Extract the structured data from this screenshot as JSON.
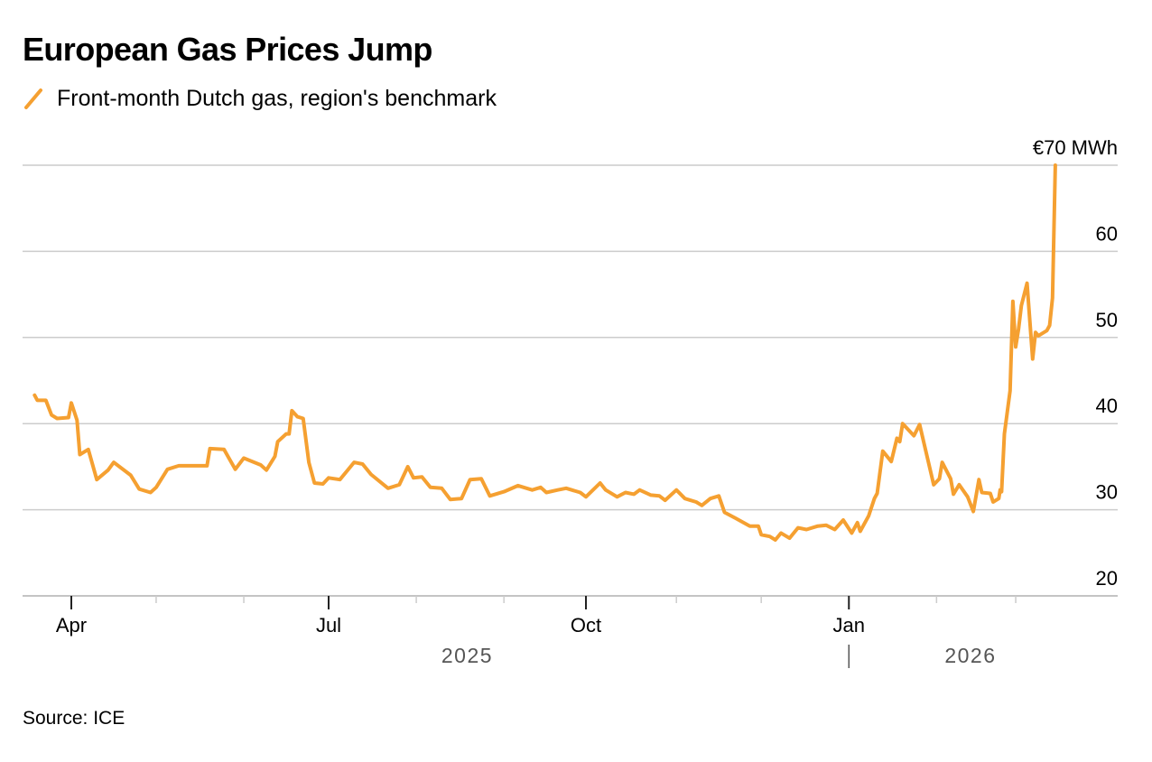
{
  "chart_data": {
    "type": "line",
    "title": "European Gas Prices Jump",
    "legend": [
      {
        "label": "Front-month Dutch gas, region's benchmark",
        "color": "#f5a031",
        "icon": "slash-line-icon"
      }
    ],
    "legend_placement": "top-left",
    "source": "Source: ICE",
    "unit_label": "€70 MWh",
    "ylabel": "",
    "xlabel": "",
    "ylim": [
      20,
      70
    ],
    "y_ticks": [
      {
        "value": 70,
        "label": "€70 MWh"
      },
      {
        "value": 60,
        "label": "60"
      },
      {
        "value": 50,
        "label": "50"
      },
      {
        "value": 40,
        "label": "40"
      },
      {
        "value": 30,
        "label": "30"
      },
      {
        "value": 20,
        "label": "20"
      }
    ],
    "y_axis_side": "right",
    "grid": true,
    "x_axis": {
      "unit": "days since 2025-04-01",
      "range": [
        -17,
        368
      ],
      "major_ticks": [
        {
          "day": 0,
          "label": "Apr"
        },
        {
          "day": 91,
          "label": "Jul"
        },
        {
          "day": 182,
          "label": "Oct"
        },
        {
          "day": 275,
          "label": "Jan"
        }
      ],
      "minor_ticks": [
        30,
        61,
        122,
        153,
        214,
        244,
        306,
        334
      ],
      "year_labels": [
        {
          "day": 140,
          "label": "2025"
        },
        {
          "day": 318,
          "label": "2026"
        }
      ],
      "year_divider_day": 275
    },
    "series": [
      {
        "name": "Front-month Dutch gas, region's benchmark",
        "color": "#f5a031",
        "x": [
          -13,
          -12,
          -9,
          -7,
          -5,
          -1,
          0,
          2,
          3,
          6,
          9,
          13,
          15,
          21,
          24,
          28,
          30,
          34,
          38,
          48,
          49,
          54,
          58,
          61,
          67,
          69,
          72,
          73,
          76,
          77,
          78,
          80,
          82,
          84,
          86,
          89,
          91,
          95,
          100,
          103,
          106,
          112,
          116,
          119,
          121,
          124,
          127,
          131,
          134,
          138,
          141,
          145,
          148,
          153,
          158,
          163,
          166,
          168,
          172,
          175,
          180,
          182,
          187,
          189,
          193,
          196,
          199,
          201,
          205,
          208,
          210,
          214,
          217,
          221,
          223,
          226,
          229,
          231,
          235,
          240,
          243,
          244,
          247,
          249,
          251,
          254,
          257,
          260,
          264,
          267,
          270,
          273,
          276,
          278,
          279,
          282,
          284,
          285,
          287,
          290,
          292,
          293,
          294,
          298,
          300,
          305,
          307,
          308,
          311,
          312,
          314,
          317,
          319,
          321,
          322,
          325,
          326,
          328,
          328.5,
          329,
          330,
          332,
          333,
          334,
          335,
          336,
          338,
          340,
          341,
          342,
          345,
          346,
          347,
          348
        ],
        "values": [
          43.3,
          42.7,
          42.7,
          41.0,
          40.6,
          40.7,
          42.4,
          40.4,
          36.4,
          37.0,
          33.5,
          34.6,
          35.5,
          34.0,
          32.4,
          32.0,
          32.6,
          34.7,
          35.1,
          35.1,
          37.1,
          37.0,
          34.7,
          36.0,
          35.2,
          34.6,
          36.2,
          37.9,
          38.8,
          38.8,
          41.5,
          40.8,
          40.6,
          35.5,
          33.1,
          33.0,
          33.7,
          33.5,
          35.5,
          35.3,
          34.1,
          32.5,
          32.9,
          35.0,
          33.7,
          33.8,
          32.6,
          32.5,
          31.2,
          31.3,
          33.5,
          33.6,
          31.6,
          32.1,
          32.8,
          32.3,
          32.6,
          32.0,
          32.3,
          32.5,
          32.0,
          31.5,
          33.1,
          32.3,
          31.5,
          32.0,
          31.8,
          32.3,
          31.7,
          31.6,
          31.1,
          32.3,
          31.3,
          30.9,
          30.5,
          31.3,
          31.6,
          29.7,
          29.0,
          28.1,
          28.1,
          27.1,
          26.9,
          26.5,
          27.3,
          26.7,
          27.9,
          27.7,
          28.1,
          28.2,
          27.7,
          28.8,
          27.3,
          28.5,
          27.5,
          29.3,
          31.3,
          31.9,
          36.8,
          35.6,
          38.3,
          37.9,
          40.0,
          38.6,
          39.9,
          32.9,
          33.6,
          35.5,
          33.6,
          31.8,
          32.9,
          31.5,
          29.8,
          33.5,
          32.0,
          31.9,
          30.9,
          31.3,
          32.3,
          32.1,
          38.8,
          43.8,
          54.2,
          48.9,
          51.0,
          53.7,
          56.3,
          47.5,
          50.6,
          50.2,
          50.8,
          51.4,
          54.6,
          70.0
        ]
      }
    ]
  }
}
